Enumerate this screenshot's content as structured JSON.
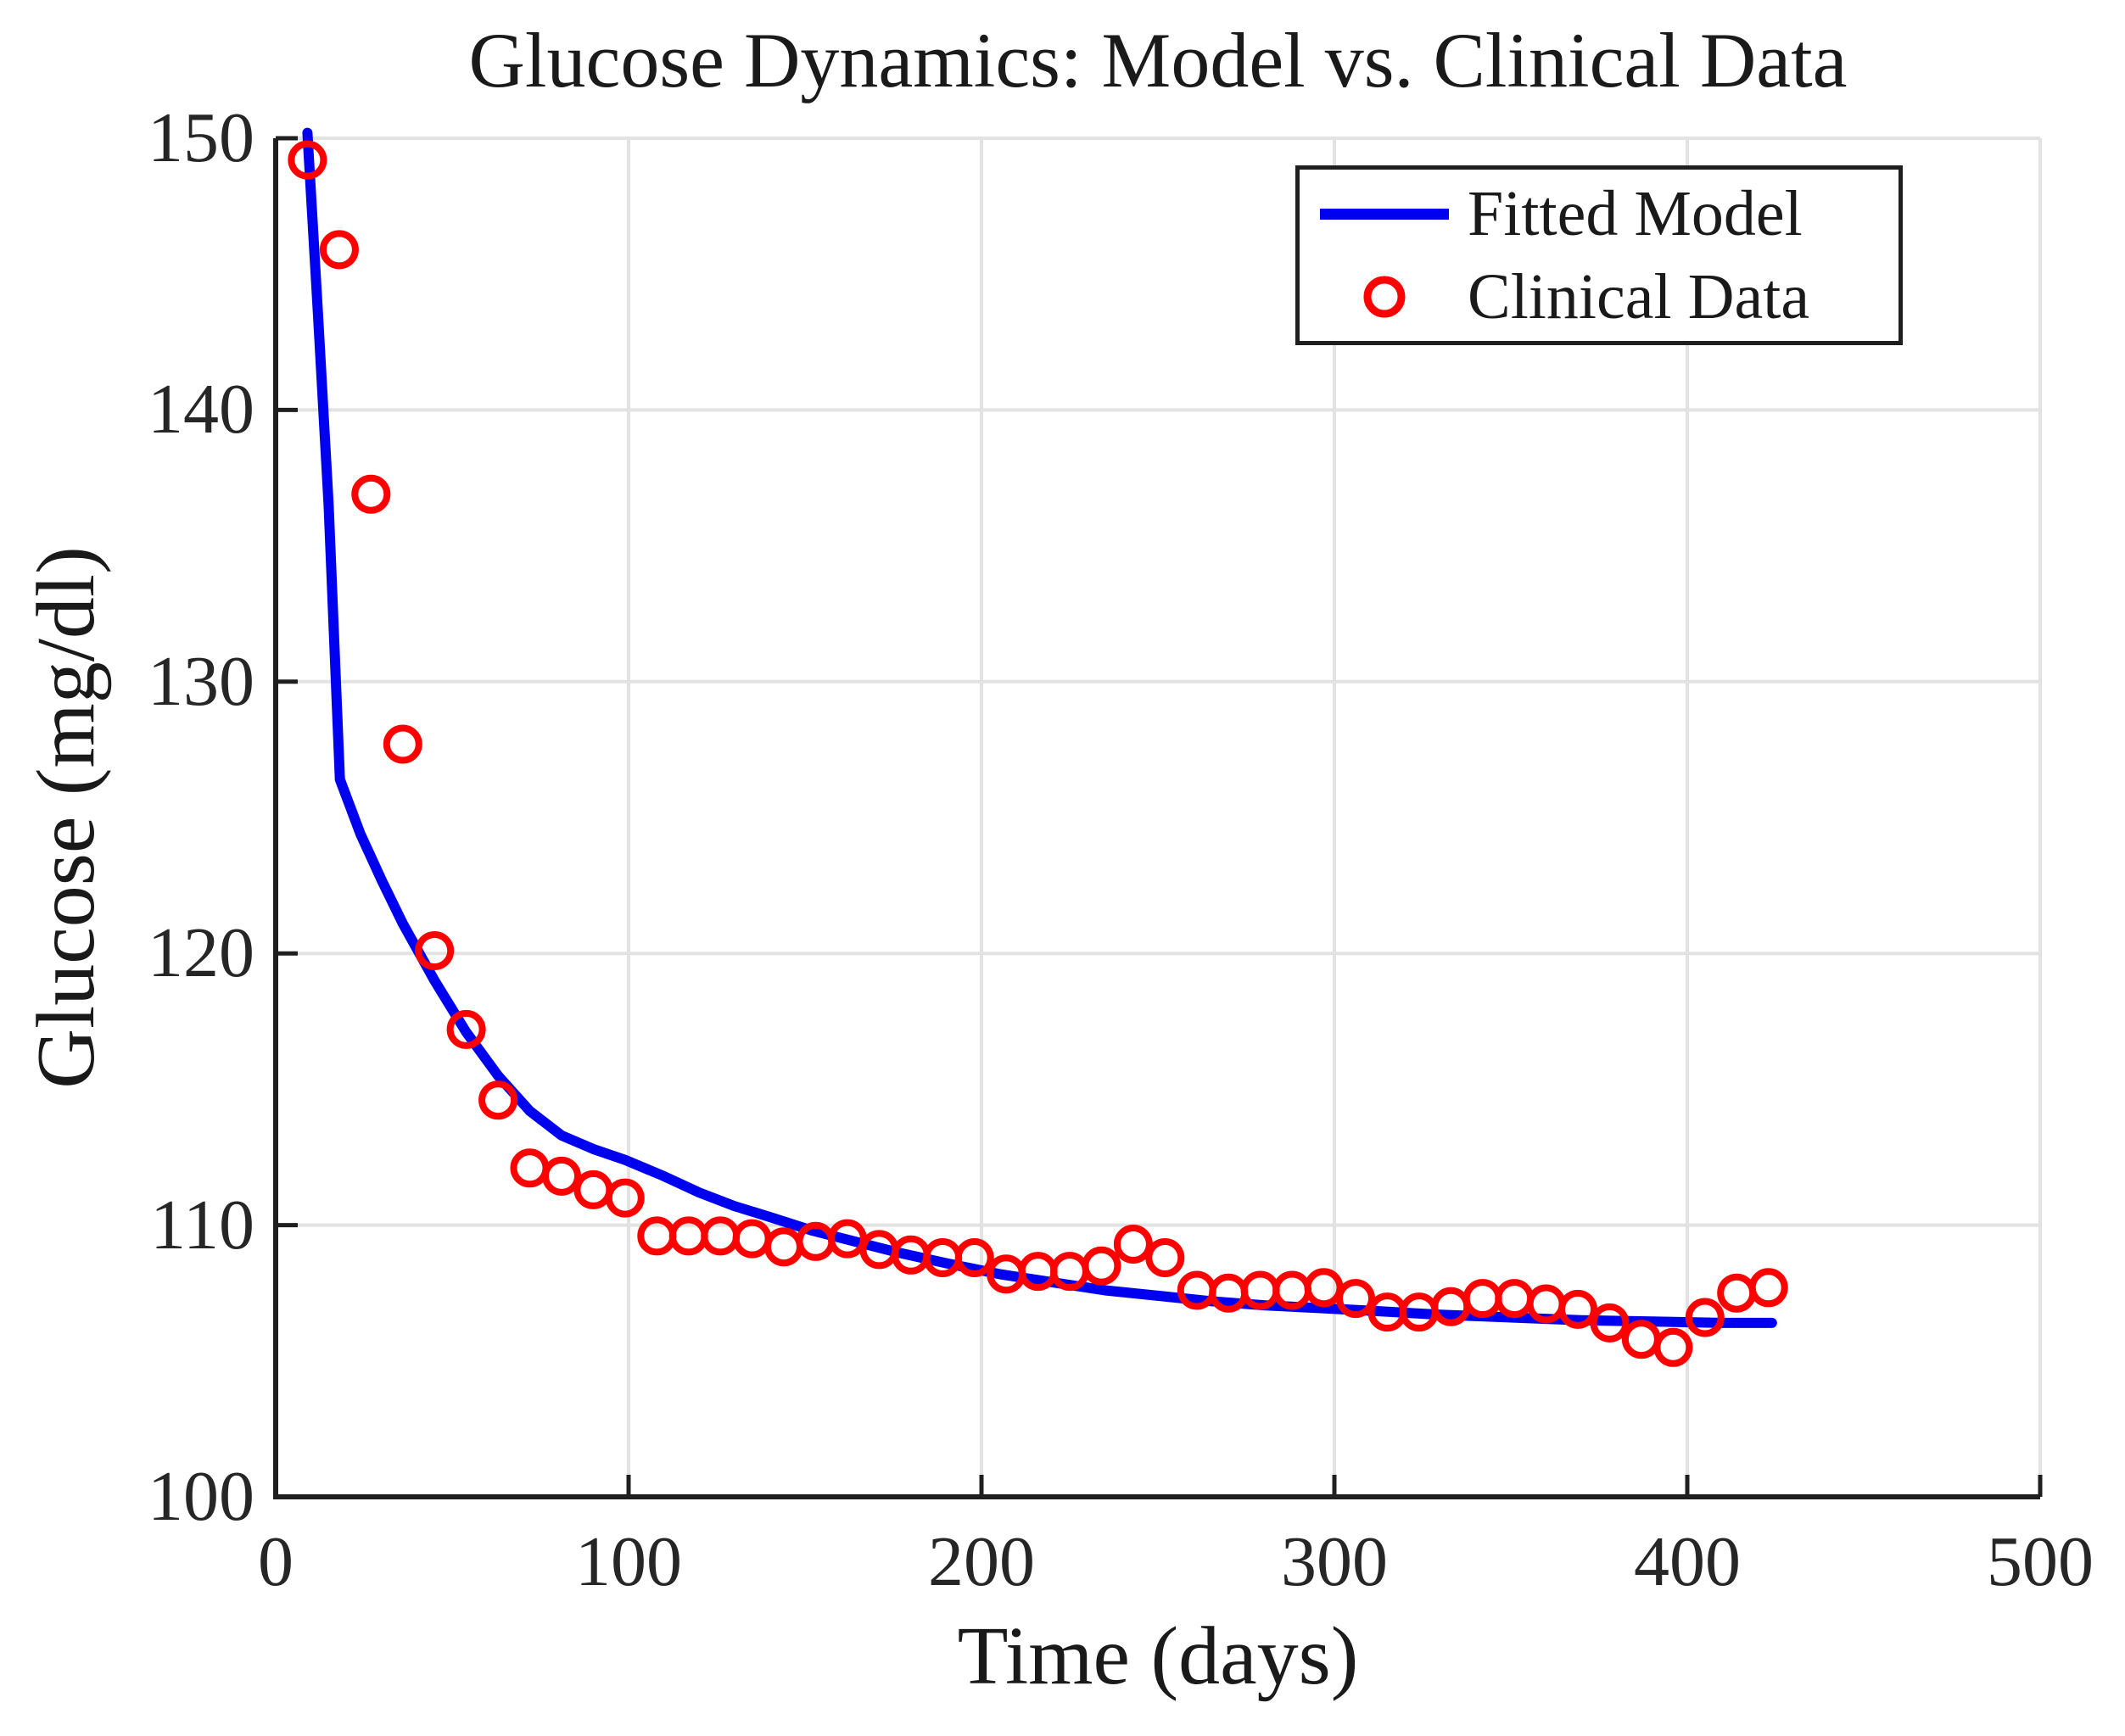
{
  "title": "Glucose Dynamics: Model vs. Clinical Data",
  "colors": {
    "model_line": "#0000f0",
    "clinical_marker": "#ff0000",
    "grid": "#e2e2e2",
    "axis": "#1f1f1f",
    "text": "#1a1a1a",
    "background": "#ffffff"
  },
  "legend": {
    "position": "northeast",
    "items": [
      {
        "label": "Fitted Model",
        "marker": "line-icon",
        "color": "#0000f0"
      },
      {
        "label": "Clinical Data",
        "marker": "circle-icon",
        "color": "#ff0000"
      }
    ]
  },
  "chart_data": {
    "type": "line",
    "title": "Glucose Dynamics: Model vs. Clinical Data",
    "xlabel": "Time (days)",
    "ylabel": "Glucose (mg/dl)",
    "xlim": [
      0,
      500
    ],
    "ylim": [
      100,
      150
    ],
    "xticks": [
      0,
      100,
      200,
      300,
      400,
      500
    ],
    "yticks": [
      100,
      110,
      120,
      130,
      140,
      150
    ],
    "grid": true,
    "legend_position": "northeast",
    "series": [
      {
        "name": "Fitted Model",
        "type": "line",
        "color": "#0000f0",
        "points": [
          [
            9,
            150.2
          ],
          [
            12,
            143.5
          ],
          [
            15,
            136.5
          ],
          [
            18.2,
            126.4
          ],
          [
            24,
            124.4
          ],
          [
            30,
            122.7
          ],
          [
            36,
            121.1
          ],
          [
            45,
            119.0
          ],
          [
            54,
            117.1
          ],
          [
            63,
            115.5
          ],
          [
            72,
            114.2
          ],
          [
            81,
            113.3
          ],
          [
            90,
            112.8
          ],
          [
            99,
            112.4
          ],
          [
            110,
            111.8
          ],
          [
            120,
            111.2
          ],
          [
            130,
            110.7
          ],
          [
            140,
            110.3
          ],
          [
            152,
            109.8
          ],
          [
            164,
            109.4
          ],
          [
            176,
            109.0
          ],
          [
            190,
            108.6
          ],
          [
            205,
            108.2
          ],
          [
            220,
            107.9
          ],
          [
            235,
            107.6
          ],
          [
            250,
            107.4
          ],
          [
            265,
            107.2
          ],
          [
            280,
            107.05
          ],
          [
            295,
            106.95
          ],
          [
            310,
            106.85
          ],
          [
            330,
            106.7
          ],
          [
            350,
            106.6
          ],
          [
            370,
            106.5
          ],
          [
            390,
            106.45
          ],
          [
            410,
            106.4
          ],
          [
            424,
            106.4
          ]
        ]
      },
      {
        "name": "Clinical Data",
        "type": "scatter",
        "color": "#ff0000",
        "points": [
          [
            9,
            149.2
          ],
          [
            18,
            145.9
          ],
          [
            27,
            136.9
          ],
          [
            36,
            127.7
          ],
          [
            45,
            120.1
          ],
          [
            54,
            117.2
          ],
          [
            63,
            114.6
          ],
          [
            72,
            112.1
          ],
          [
            81,
            111.8
          ],
          [
            90,
            111.3
          ],
          [
            99,
            111.0
          ],
          [
            108,
            109.6
          ],
          [
            117,
            109.6
          ],
          [
            126,
            109.6
          ],
          [
            135,
            109.5
          ],
          [
            144,
            109.2
          ],
          [
            153,
            109.4
          ],
          [
            162,
            109.5
          ],
          [
            171,
            109.1
          ],
          [
            180,
            108.9
          ],
          [
            189,
            108.8
          ],
          [
            198,
            108.8
          ],
          [
            207,
            108.2
          ],
          [
            216,
            108.3
          ],
          [
            225,
            108.3
          ],
          [
            234,
            108.5
          ],
          [
            243,
            109.3
          ],
          [
            252,
            108.8
          ],
          [
            261,
            107.6
          ],
          [
            270,
            107.5
          ],
          [
            279,
            107.6
          ],
          [
            288,
            107.6
          ],
          [
            297,
            107.7
          ],
          [
            306,
            107.3
          ],
          [
            315,
            106.8
          ],
          [
            324,
            106.8
          ],
          [
            333,
            107.0
          ],
          [
            342,
            107.3
          ],
          [
            351,
            107.3
          ],
          [
            360,
            107.1
          ],
          [
            369,
            106.9
          ],
          [
            378,
            106.4
          ],
          [
            387,
            105.8
          ],
          [
            396,
            105.5
          ],
          [
            405,
            106.6
          ],
          [
            414,
            107.5
          ],
          [
            423,
            107.7
          ]
        ]
      }
    ]
  }
}
